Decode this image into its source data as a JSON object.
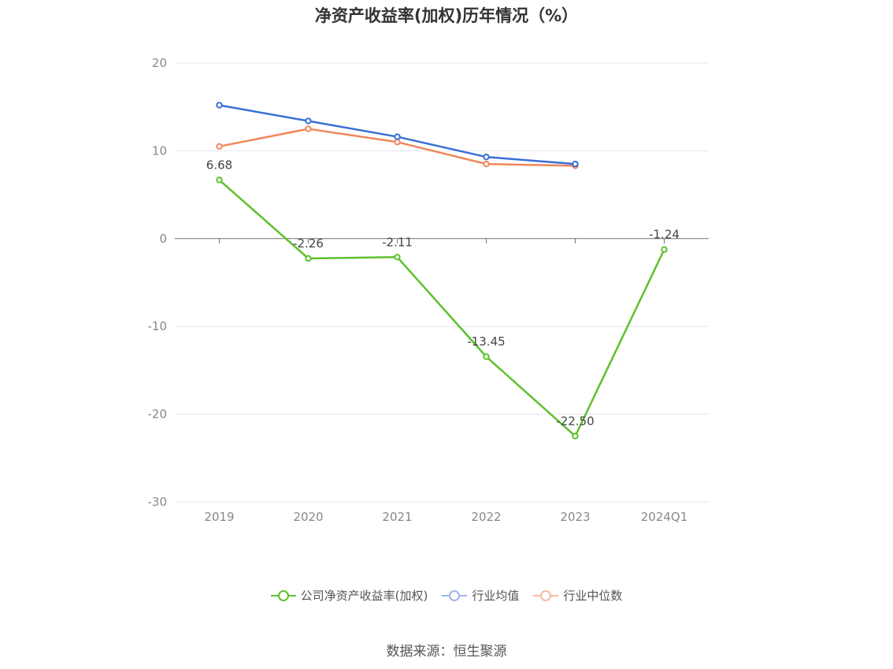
{
  "chart_data": {
    "type": "line",
    "title": "净资产收益率(加权)历年情况（%）",
    "categories": [
      "2019",
      "2020",
      "2021",
      "2022",
      "2023",
      "2024Q1"
    ],
    "ylim": [
      -30,
      20
    ],
    "yticks": [
      20,
      10,
      0,
      -10,
      -20,
      -30
    ],
    "grid": true,
    "legend_position": "bottom",
    "series": [
      {
        "name": "公司净资产收益率(加权)",
        "color": "#5dc12c",
        "values": [
          6.68,
          -2.26,
          -2.11,
          -13.45,
          -22.5,
          -1.24
        ],
        "labels": [
          "6.68",
          "-2.26",
          "-2.11",
          "-13.45",
          "-22.50",
          "-1.24"
        ]
      },
      {
        "name": "行业均值",
        "color": "#3a6fd8",
        "values": [
          15.2,
          13.4,
          11.6,
          9.3,
          8.5,
          null
        ]
      },
      {
        "name": "行业中位数",
        "color": "#f0875a",
        "values": [
          10.5,
          12.5,
          11.0,
          8.5,
          8.3,
          null
        ]
      }
    ]
  },
  "source": "数据来源：恒生聚源"
}
